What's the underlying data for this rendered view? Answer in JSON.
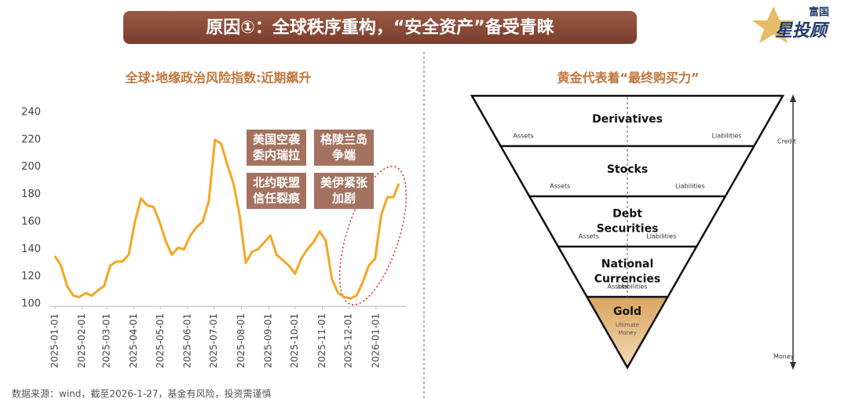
{
  "header": {
    "title": "原因①：全球秩序重构，“安全资产”备受青睐",
    "logo_top": "富国",
    "logo_main": "星投顾"
  },
  "chart_data": {
    "type": "line",
    "title": "全球:地缘政治风险指数:近期飙升",
    "color": "#f5a623",
    "x": [
      "2025-01-01",
      "2025-01-08",
      "2025-01-15",
      "2025-01-22",
      "2025-01-29",
      "2025-02-05",
      "2025-02-12",
      "2025-02-19",
      "2025-02-26",
      "2025-03-05",
      "2025-03-12",
      "2025-03-19",
      "2025-03-26",
      "2025-04-02",
      "2025-04-09",
      "2025-04-16",
      "2025-04-23",
      "2025-04-30",
      "2025-05-07",
      "2025-05-14",
      "2025-05-21",
      "2025-05-28",
      "2025-06-04",
      "2025-06-11",
      "2025-06-18",
      "2025-06-25",
      "2025-07-02",
      "2025-07-09",
      "2025-07-16",
      "2025-07-23",
      "2025-07-30",
      "2025-08-06",
      "2025-08-13",
      "2025-08-20",
      "2025-08-27",
      "2025-09-03",
      "2025-09-10",
      "2025-09-17",
      "2025-09-24",
      "2025-10-01",
      "2025-10-08",
      "2025-10-15",
      "2025-10-22",
      "2025-10-29",
      "2025-11-05",
      "2025-11-12",
      "2025-11-19",
      "2025-11-26",
      "2025-12-03",
      "2025-12-10",
      "2025-12-17",
      "2025-12-24",
      "2025-12-31",
      "2026-01-07",
      "2026-01-14",
      "2026-01-21",
      "2026-01-27"
    ],
    "values": [
      135,
      128,
      113,
      106,
      105,
      108,
      106,
      110,
      113,
      128,
      131,
      131,
      136,
      160,
      177,
      172,
      171,
      160,
      146,
      136,
      141,
      140,
      150,
      156,
      160,
      175,
      220,
      217,
      202,
      188,
      165,
      130,
      138,
      140,
      145,
      150,
      136,
      132,
      128,
      122,
      133,
      140,
      145,
      153,
      146,
      118,
      108,
      105,
      104,
      106,
      116,
      128,
      133,
      165,
      178,
      178,
      188
    ],
    "xlim": [
      "2024-12-25",
      "2026-02-05"
    ],
    "xticks": [
      "2025-01-01",
      "2025-02-01",
      "2025-03-01",
      "2025-04-01",
      "2025-05-01",
      "2025-06-01",
      "2025-07-01",
      "2025-08-01",
      "2025-09-01",
      "2025-10-01",
      "2025-11-01",
      "2025-12-01",
      "2026-01-01"
    ],
    "ylim": [
      100,
      240
    ],
    "yticks": [
      100,
      120,
      140,
      160,
      180,
      200,
      220,
      240
    ],
    "annotations": [
      [
        "美国空袭",
        "委内瑞拉"
      ],
      [
        "格陵兰岛",
        "争端"
      ],
      [
        "北约联盟",
        "信任裂痕"
      ],
      [
        "美伊紧张",
        "加剧"
      ]
    ]
  },
  "diagram": {
    "title": "黄金代表着“最终购买力”",
    "layers": [
      {
        "label": [
          "Derivatives"
        ],
        "assets": "Assets",
        "liabilities": "Liabilities"
      },
      {
        "label": [
          "Stocks"
        ],
        "assets": "Assets",
        "liabilities": "Liabilities"
      },
      {
        "label": [
          "Debt",
          "Securities"
        ],
        "assets": "Assets",
        "liabilities": "Liabilities"
      },
      {
        "label": [
          "National",
          "Currencies"
        ],
        "assets": "Assets",
        "liabilities": "Liabilities"
      }
    ],
    "gold": {
      "label": "Gold",
      "sub": [
        "Ultimate",
        "Money"
      ]
    },
    "axis_top": "Credit",
    "axis_bottom": "Money"
  },
  "footnote": "数据来源：wind，截至2026-1-27，基金有风险，投资需谨慎"
}
